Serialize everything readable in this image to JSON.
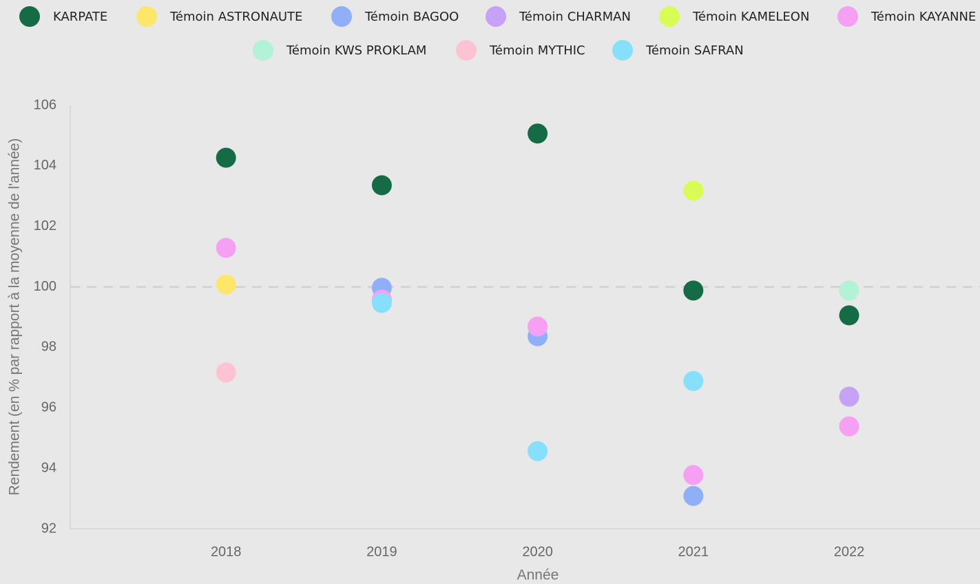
{
  "chart_data": {
    "type": "scatter",
    "x_label": "Année",
    "y_label": "Rendement (en % par rapport à la moyenne de l'année)",
    "x": [
      2018,
      2019,
      2020,
      2021,
      2022
    ],
    "xlim": [
      2017,
      2022.84
    ],
    "xticks": [
      2018,
      2019,
      2020,
      2021,
      2022
    ],
    "ylim": [
      92,
      106
    ],
    "yticks": [
      92,
      94,
      96,
      98,
      100,
      102,
      104,
      106
    ],
    "grid": false,
    "reference_line": 100,
    "legend": "top",
    "series": [
      {
        "name": "KARPATE",
        "color": "#146b45",
        "values": [
          104.27,
          103.36,
          105.07,
          99.88,
          99.06
        ]
      },
      {
        "name": "Témoin ASTRONAUTE",
        "color": "#fde66a",
        "values": [
          100.08,
          null,
          null,
          null,
          null
        ]
      },
      {
        "name": "Témoin BAGOO",
        "color": "#8fb0f8",
        "values": [
          null,
          99.97,
          98.37,
          93.09,
          null
        ]
      },
      {
        "name": "Témoin CHARMAN",
        "color": "#c6a2f7",
        "values": [
          null,
          null,
          null,
          null,
          96.37
        ]
      },
      {
        "name": "Témoin KAMELEON",
        "color": "#d8fb55",
        "values": [
          null,
          null,
          null,
          103.18,
          null
        ]
      },
      {
        "name": "Témoin KAYANNE",
        "color": "#f6a0f3",
        "values": [
          101.29,
          99.58,
          98.69,
          93.78,
          95.39
        ]
      },
      {
        "name": "Témoin KWS PROKLAM",
        "color": "#b2f2d6",
        "values": [
          null,
          null,
          null,
          null,
          99.88
        ]
      },
      {
        "name": "Témoin MYTHIC",
        "color": "#fdc3d3",
        "values": [
          97.17,
          null,
          null,
          null,
          null
        ]
      },
      {
        "name": "Témoin SAFRAN",
        "color": "#86e0fb",
        "values": [
          null,
          99.47,
          94.57,
          96.89,
          null
        ]
      }
    ]
  }
}
